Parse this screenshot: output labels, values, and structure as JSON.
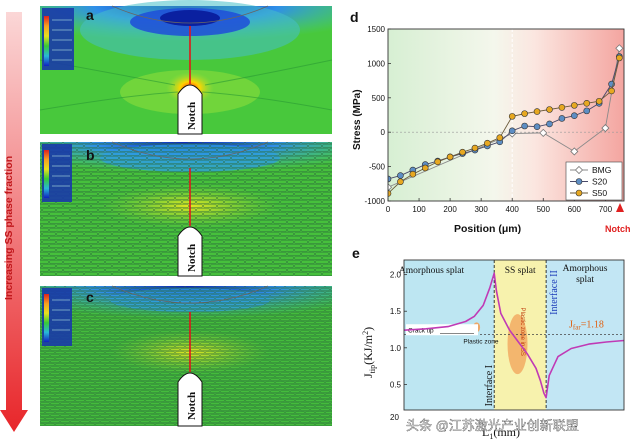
{
  "left_panels": {
    "side_label": "Increasing SS phase fraction",
    "panels": [
      {
        "letter": "a",
        "notch_label": "Notch"
      },
      {
        "letter": "b",
        "notch_label": "Notch"
      },
      {
        "letter": "c",
        "notch_label": "Notch"
      }
    ],
    "colors": {
      "high": "#d81818",
      "mid": "#3fc23a",
      "low": "#1430c8"
    }
  },
  "watermark": "头条 @江苏激光产业创新联盟",
  "chart_data": [
    {
      "panel": "d",
      "type": "line",
      "xlabel": "Position (μm)",
      "ylabel": "Stress (MPa)",
      "xlim": [
        0,
        760
      ],
      "ylim": [
        -1000,
        1500
      ],
      "xticks": [
        0,
        100,
        200,
        300,
        400,
        500,
        600,
        700
      ],
      "yticks": [
        -1000,
        -500,
        0,
        500,
        1000,
        1500
      ],
      "grid": false,
      "legend_position": "bottom-right",
      "vline_x": 400,
      "notch_label": "Notch",
      "series": [
        {
          "name": "BMG",
          "color": "#ffffff",
          "x": [
            0,
            400,
            500,
            600,
            700,
            745
          ],
          "y": [
            -800,
            -20,
            -10,
            -280,
            60,
            1220
          ]
        },
        {
          "name": "S20",
          "color": "#5e8ec4",
          "x": [
            0,
            40,
            80,
            120,
            160,
            200,
            240,
            280,
            320,
            360,
            400,
            440,
            480,
            520,
            560,
            600,
            640,
            680,
            720,
            745
          ],
          "y": [
            -680,
            -630,
            -550,
            -470,
            -420,
            -360,
            -310,
            -260,
            -200,
            -140,
            20,
            90,
            80,
            120,
            200,
            240,
            310,
            420,
            700,
            1100
          ]
        },
        {
          "name": "S50",
          "color": "#e7a821",
          "x": [
            0,
            40,
            80,
            120,
            160,
            200,
            240,
            280,
            320,
            360,
            400,
            440,
            480,
            520,
            560,
            600,
            640,
            680,
            720,
            745
          ],
          "y": [
            -890,
            -720,
            -610,
            -520,
            -430,
            -360,
            -290,
            -230,
            -160,
            -80,
            230,
            270,
            300,
            330,
            360,
            390,
            420,
            450,
            600,
            1080
          ]
        }
      ]
    },
    {
      "panel": "e",
      "type": "line",
      "xlabel": "L",
      "xlabel_sub": "1",
      "xlabel_unit": "(mm)",
      "ylabel": "J",
      "ylabel_sub": "tip",
      "ylabel_unit": "(KJ/m",
      "ylabel_sup": "2",
      "ylabel_close": ")",
      "xlim": [
        20,
        70
      ],
      "ylim": [
        0.15,
        2.2
      ],
      "xtick_labels": [
        "20"
      ],
      "yticks": [
        0.5,
        1.0,
        1.5,
        2.0
      ],
      "reference_label": "J",
      "reference_sub": "far",
      "reference_value_text": "=1.18",
      "reference_value": 1.18,
      "regions": [
        {
          "label": "Amorphous splat",
          "color": "#bde6f2"
        },
        {
          "label": "SS splat",
          "color": "#f7f2ad"
        },
        {
          "label": "Amorphous splat",
          "color": "#c2e6f4"
        }
      ],
      "annotations": {
        "crack_tip": "Crack tip",
        "plastic_zone": "Plastic zone",
        "plastic_zone_in_ss": "Plastic zone in SS",
        "interface_1": "Interface I",
        "interface_2": "Interface II"
      },
      "series": [
        {
          "name": "J_tip",
          "color": "#c03ab5",
          "x": [
            20,
            25,
            30,
            34,
            36,
            38,
            39.5,
            40.5,
            41,
            42,
            44,
            46,
            48,
            50,
            51,
            51.8,
            52.3,
            53,
            55,
            58,
            62,
            66,
            70
          ],
          "y": [
            1.24,
            1.26,
            1.29,
            1.36,
            1.43,
            1.58,
            1.82,
            2.02,
            1.78,
            1.47,
            1.24,
            1.08,
            0.92,
            0.72,
            0.55,
            0.38,
            0.32,
            0.62,
            0.88,
            0.99,
            1.05,
            1.08,
            1.1
          ]
        }
      ]
    }
  ]
}
